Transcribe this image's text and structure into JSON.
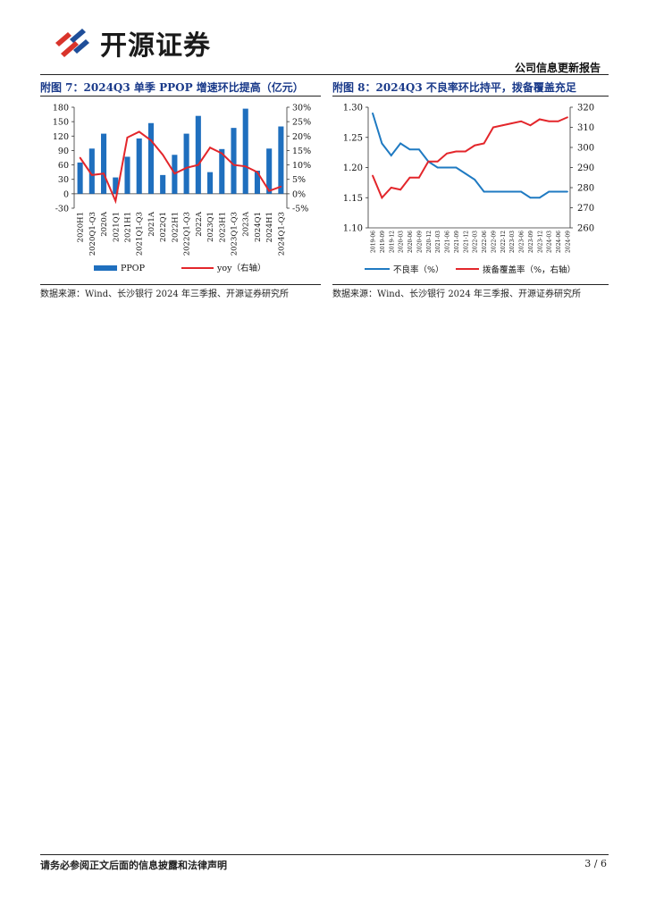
{
  "header": {
    "logo_text": "开源证券",
    "report_type": "公司信息更新报告"
  },
  "colors": {
    "bar": "#1f6fbe",
    "line_red": "#e3262b",
    "line_blue": "#1f7ac2",
    "title": "#1a3a8a",
    "logo_red": "#d9342b",
    "logo_blue": "#1f4e99"
  },
  "icons": {
    "logo": "kaiyuan-securities-logo-icon"
  },
  "figures": [
    {
      "title": "附图 7：2024Q3 单季 PPOP 增速环比提高（亿元）",
      "source": "数据来源：Wind、长沙银行 2024 年三季报、开源证券研究所"
    },
    {
      "title": "附图 8：2024Q3 不良率环比持平，拨备覆盖充足",
      "source": "数据来源：Wind、长沙银行 2024 年三季报、开源证券研究所"
    }
  ],
  "chart_data": [
    {
      "type": "bar",
      "categories": [
        "2020H1",
        "2020Q1-Q3",
        "2020A",
        "2021Q1",
        "2021H1",
        "2021Q1-Q3",
        "2021A",
        "2022Q1",
        "2022H1",
        "2022Q1-Q3",
        "2022A",
        "2023Q1",
        "2023H1",
        "2023Q1-Q3",
        "2023A",
        "2024Q1",
        "2024H1",
        "2024Q1-Q3"
      ],
      "series": [
        {
          "name": "PPOP",
          "type": "bar",
          "axis": "left",
          "values": [
            65,
            94,
            125,
            34,
            77,
            115,
            147,
            39,
            81,
            125,
            162,
            45,
            93,
            137,
            177,
            48,
            94,
            140
          ]
        },
        {
          "name": "yoy（右轴）",
          "type": "line",
          "axis": "right",
          "values": [
            12.5,
            6.5,
            7.0,
            -2.5,
            19.5,
            21.5,
            18.5,
            13.5,
            7.0,
            9.0,
            10.0,
            16.0,
            14.0,
            10.0,
            9.5,
            7.5,
            1.0,
            2.5
          ]
        }
      ],
      "ylim": [
        -30,
        180
      ],
      "yticks": [
        "-30",
        "0",
        "30",
        "60",
        "90",
        "120",
        "150",
        "180"
      ],
      "y2lim": [
        -5,
        30
      ],
      "y2ticks": [
        "-5%",
        "0%",
        "5%",
        "10%",
        "15%",
        "20%",
        "25%",
        "30%"
      ],
      "legend": [
        "PPOP",
        "yoy（右轴）"
      ],
      "legend_position": "bottom"
    },
    {
      "type": "line",
      "categories": [
        "2019-06",
        "2019-09",
        "2019-12",
        "2020-03",
        "2020-06",
        "2020-09",
        "2020-12",
        "2021-03",
        "2021-06",
        "2021-09",
        "2021-12",
        "2022-03",
        "2022-06",
        "2022-09",
        "2022-12",
        "2023-03",
        "2023-06",
        "2023-09",
        "2023-12",
        "2024-03",
        "2024-06",
        "2024-09"
      ],
      "series": [
        {
          "name": "不良率（%）",
          "axis": "left",
          "values": [
            1.29,
            1.24,
            1.22,
            1.24,
            1.23,
            1.23,
            1.21,
            1.2,
            1.2,
            1.2,
            1.19,
            1.18,
            1.16,
            1.16,
            1.16,
            1.16,
            1.16,
            1.15,
            1.15,
            1.16,
            1.16,
            1.16
          ]
        },
        {
          "name": "拨备覆盖率（%，右轴）",
          "axis": "right",
          "values": [
            286,
            275,
            280,
            279,
            285,
            285,
            293,
            293,
            297,
            298,
            298,
            301,
            302,
            310,
            311,
            312,
            313,
            311,
            314,
            313,
            313,
            315
          ]
        }
      ],
      "ylim": [
        1.1,
        1.3
      ],
      "yticks": [
        "1.10",
        "1.15",
        "1.20",
        "1.25",
        "1.30"
      ],
      "y2lim": [
        260,
        320
      ],
      "y2ticks": [
        "260",
        "270",
        "280",
        "290",
        "300",
        "310",
        "320"
      ],
      "legend": [
        "不良率（%）",
        "拨备覆盖率（%，右轴）"
      ],
      "legend_position": "bottom"
    }
  ],
  "footer": {
    "disclaimer": "请务必参阅正文后面的信息披露和法律声明",
    "page": "3 / 6"
  }
}
